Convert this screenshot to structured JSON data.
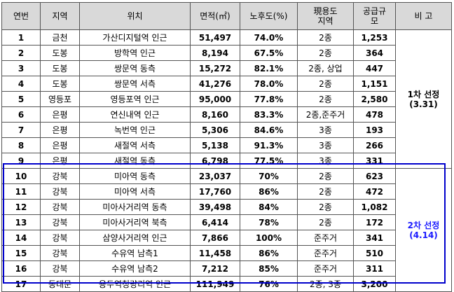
{
  "headers": {
    "no": "연번",
    "region": "지역",
    "location": "위치",
    "area": "면적(㎡)",
    "ratio": "노후도(%)",
    "zoning_line1": "現용도",
    "zoning_line2": "지역",
    "supply_line1": "공급규",
    "supply_line2": "모",
    "note": "비 고"
  },
  "rows": [
    {
      "no": "1",
      "region": "금천",
      "location": "가산디지털역 인근",
      "area": "51,497",
      "ratio": "74.0%",
      "zoning": "2종",
      "supply": "1,253"
    },
    {
      "no": "2",
      "region": "도봉",
      "location": "방학역 인근",
      "area": "8,194",
      "ratio": "67.5%",
      "zoning": "2종",
      "supply": "364"
    },
    {
      "no": "3",
      "region": "도봉",
      "location": "쌍문역 동측",
      "area": "15,272",
      "ratio": "82.1%",
      "zoning": "2종, 상업",
      "supply": "447"
    },
    {
      "no": "4",
      "region": "도봉",
      "location": "쌍문역 서측",
      "area": "41,276",
      "ratio": "78.0%",
      "zoning": "2종",
      "supply": "1,151"
    },
    {
      "no": "5",
      "region": "영등포",
      "location": "영등포역 인근",
      "area": "95,000",
      "ratio": "77.8%",
      "zoning": "2종",
      "supply": "2,580"
    },
    {
      "no": "6",
      "region": "은평",
      "location": "연신내역 인근",
      "area": "8,160",
      "ratio": "83.3%",
      "zoning": "2종,준주거",
      "supply": "478"
    },
    {
      "no": "7",
      "region": "은평",
      "location": "녹번역 인근",
      "area": "5,306",
      "ratio": "84.6%",
      "zoning": "3종",
      "supply": "193"
    },
    {
      "no": "8",
      "region": "은평",
      "location": "새절역 서측",
      "area": "5,138",
      "ratio": "91.3%",
      "zoning": "3종",
      "supply": "266"
    },
    {
      "no": "9",
      "region": "은평",
      "location": "새절역 동측",
      "area": "6,798",
      "ratio": "77.5%",
      "zoning": "3종",
      "supply": "331"
    },
    {
      "no": "10",
      "region": "강북",
      "location": "미아역 동측",
      "area": "23,037",
      "ratio": "70%",
      "zoning": "2종",
      "supply": "623"
    },
    {
      "no": "11",
      "region": "강북",
      "location": "미아역 서측",
      "area": "17,760",
      "ratio": "86%",
      "zoning": "2종",
      "supply": "472"
    },
    {
      "no": "12",
      "region": "강북",
      "location": "미아사거리역 동측",
      "area": "39,498",
      "ratio": "84%",
      "zoning": "2종",
      "supply": "1,082"
    },
    {
      "no": "13",
      "region": "강북",
      "location": "미아사거리역 북측",
      "area": "6,414",
      "ratio": "78%",
      "zoning": "2종",
      "supply": "172"
    },
    {
      "no": "14",
      "region": "강북",
      "location": "삼양사거리역 인근",
      "area": "7,866",
      "ratio": "100%",
      "zoning": "준주거",
      "supply": "341"
    },
    {
      "no": "15",
      "region": "강북",
      "location": "수유역 남측1",
      "area": "11,458",
      "ratio": "86%",
      "zoning": "준주거",
      "supply": "510"
    },
    {
      "no": "16",
      "region": "강북",
      "location": "수유역 남측2",
      "area": "7,212",
      "ratio": "85%",
      "zoning": "준주거",
      "supply": "311"
    },
    {
      "no": "17",
      "region": "동대문",
      "location": "용두역청량리역 인근",
      "area": "111,949",
      "ratio": "76%",
      "zoning": "2종, 3종",
      "supply": "3,200"
    }
  ],
  "notes": [
    {
      "line1": "1차 선정",
      "line2": "(3.31)",
      "color": "#000000"
    },
    {
      "line1": "2차 선정",
      "line2": "(4.14)",
      "color": "#1a1aff"
    }
  ],
  "colors": {
    "header_bg": "#d9d9d9",
    "highlight_border": "#0000cc",
    "second_note": "#1a1aff"
  }
}
